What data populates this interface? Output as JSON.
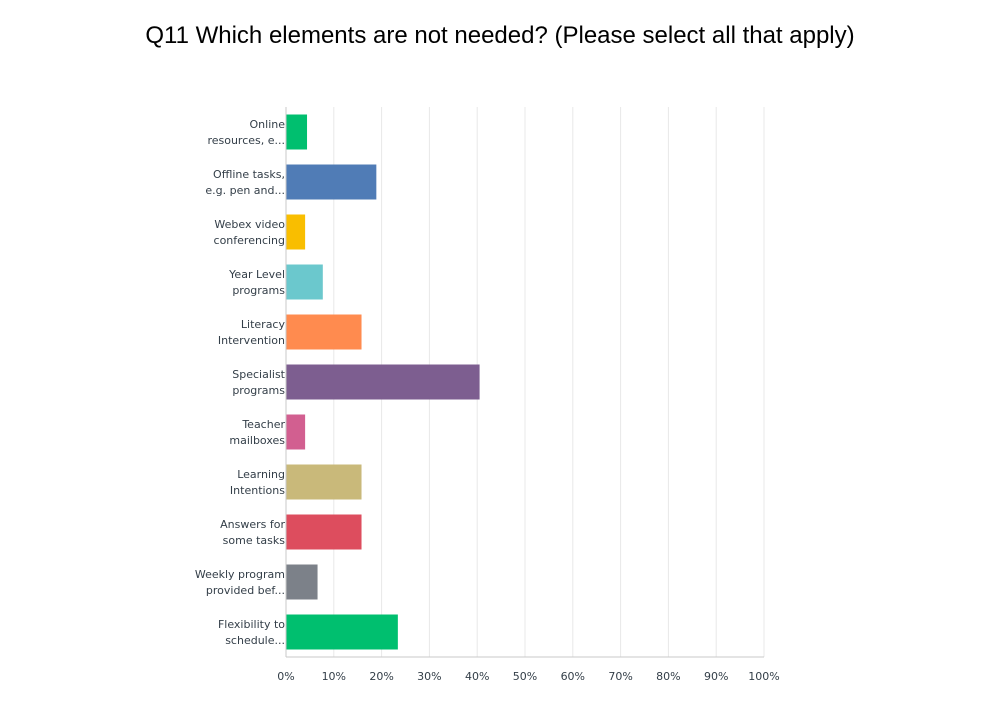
{
  "chart_data": {
    "type": "bar",
    "orientation": "horizontal",
    "title": "Q11 Which elements are not needed? (Please select all that apply)",
    "categories": [
      [
        "Online",
        "resources, e..."
      ],
      [
        "Offline tasks,",
        "e.g. pen and..."
      ],
      [
        "Webex video",
        "conferencing"
      ],
      [
        "Year Level",
        "programs"
      ],
      [
        "Literacy",
        "Intervention"
      ],
      [
        "Specialist",
        "programs"
      ],
      [
        "Teacher",
        "mailboxes"
      ],
      [
        "Learning",
        "Intentions"
      ],
      [
        "Answers for",
        "some tasks"
      ],
      [
        "Weekly program",
        "provided bef..."
      ],
      [
        "Flexibility to",
        "schedule..."
      ]
    ],
    "values": [
      4.4,
      18.9,
      4.0,
      7.7,
      15.8,
      40.5,
      4.0,
      15.8,
      15.8,
      6.6,
      23.4
    ],
    "colors": [
      "#00bf6f",
      "#507cb6",
      "#f9be00",
      "#6bc8cd",
      "#ff8b4f",
      "#7d5e90",
      "#d25f90",
      "#c9b97a",
      "#dd4d5e",
      "#7c8189",
      "#00bf6f"
    ],
    "x_ticks": [
      "0%",
      "10%",
      "20%",
      "30%",
      "40%",
      "50%",
      "60%",
      "70%",
      "80%",
      "90%",
      "100%"
    ],
    "xlim": [
      0,
      100
    ],
    "grid": true
  }
}
